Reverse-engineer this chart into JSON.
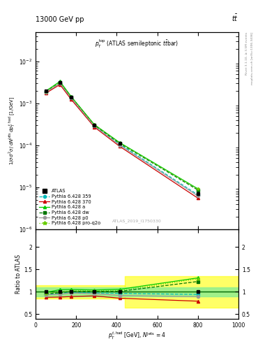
{
  "title_top": "13000 GeV pp",
  "title_top_right": "tt",
  "watermark": "ATLAS_2019_I1750330",
  "right_label1": "Rivet 3.1.10, ≥ 3.5M events",
  "right_label2": "mcplots.cern.ch [arXiv:1306.3436]",
  "ylabel_main": "1/σ d²σ / dN$^{\\rm jets}$ dp$_T^{t,\\rm had}$ [1/GeV]",
  "ylabel_ratio": "Ratio to ATLAS",
  "xlabel": "p$_T^{t,\\rm had}$ [GeV], N$^{\\rm jets}$ = 4",
  "xlim": [
    0,
    1000
  ],
  "ylim_main": [
    1e-06,
    0.05
  ],
  "ylim_ratio": [
    0.4,
    2.4
  ],
  "x_data": [
    50,
    120,
    175,
    290,
    415,
    800
  ],
  "atlas_y": [
    0.002,
    0.0032,
    0.0014,
    0.0003,
    0.00011,
    7e-06
  ],
  "atlas_yerr": [
    0.00012,
    0.00016,
    9e-05,
    2.5e-05,
    6e-06,
    8e-07
  ],
  "py359_y": [
    0.00188,
    0.00308,
    0.00138,
    0.000292,
    0.000106,
    6.6e-06
  ],
  "py370_y": [
    0.00175,
    0.00282,
    0.00125,
    0.000272,
    9.4e-05,
    5.5e-06
  ],
  "pya_y": [
    0.00197,
    0.00335,
    0.00147,
    0.000312,
    0.000116,
    9.2e-06
  ],
  "pydw_y": [
    0.00191,
    0.00312,
    0.00141,
    0.000302,
    0.000111,
    8.6e-06
  ],
  "pyp0_y": [
    0.00186,
    0.00302,
    0.00136,
    0.000287,
    0.000101,
    6.2e-06
  ],
  "pyq2o_y": [
    0.00192,
    0.00318,
    0.00143,
    0.000306,
    0.000113,
    9e-06
  ],
  "color_atlas": "#000000",
  "color_359": "#00bbbb",
  "color_370": "#cc0000",
  "color_a": "#00cc00",
  "color_dw": "#007700",
  "color_p0": "#999999",
  "color_q2o": "#66cc00",
  "ratio_359": [
    0.94,
    0.965,
    0.985,
    0.975,
    0.965,
    0.94
  ],
  "ratio_370": [
    0.875,
    0.882,
    0.893,
    0.908,
    0.856,
    0.79
  ],
  "ratio_a": [
    0.985,
    1.047,
    1.05,
    1.04,
    1.055,
    1.31
  ],
  "ratio_dw": [
    0.955,
    0.976,
    1.008,
    1.008,
    1.009,
    1.23
  ],
  "ratio_p0": [
    0.93,
    0.945,
    0.972,
    0.958,
    0.918,
    0.89
  ],
  "ratio_q2o": [
    0.96,
    0.995,
    1.022,
    1.022,
    1.025,
    1.29
  ],
  "green_band_xmin": 0,
  "green_band_xmax": 1000,
  "green_band_ylo": 0.9,
  "green_band_yhi": 1.1,
  "yellow_band1_xmin": 0,
  "yellow_band1_xmax": 440,
  "yellow_band1_ylo": 0.85,
  "yellow_band1_yhi": 1.15,
  "yellow_band2_xmin": 440,
  "yellow_band2_xmax": 1000,
  "yellow_band2_ylo": 0.65,
  "yellow_band2_yhi": 1.35
}
